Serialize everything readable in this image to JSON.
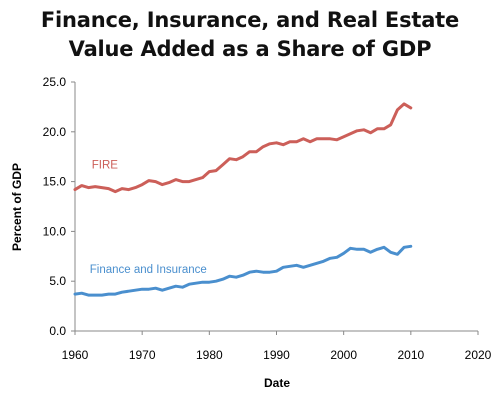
{
  "chart_data": {
    "type": "line",
    "title_lines": [
      "Finance, Insurance, and Real Estate",
      "Value Added as a Share of GDP"
    ],
    "xlabel": "Date",
    "ylabel": "Percent of GDP",
    "xlim": [
      1960,
      2020
    ],
    "ylim": [
      0,
      25
    ],
    "xticks": [
      1960,
      1970,
      1980,
      1990,
      2000,
      2010,
      2020
    ],
    "xtick_labels": [
      "1960",
      "1970",
      "1980",
      "1990",
      "2000",
      "2010",
      "2020"
    ],
    "yticks": [
      0,
      5,
      10,
      15,
      20,
      25
    ],
    "ytick_labels": [
      "0.0",
      "5.0",
      "10.0",
      "15.0",
      "20.0",
      "25.0"
    ],
    "grid": false,
    "series": [
      {
        "name": "FIRE",
        "color": "#cc5f59",
        "x": [
          1960,
          1961,
          1962,
          1963,
          1964,
          1965,
          1966,
          1967,
          1968,
          1969,
          1970,
          1971,
          1972,
          1973,
          1974,
          1975,
          1976,
          1977,
          1978,
          1979,
          1980,
          1981,
          1982,
          1983,
          1984,
          1985,
          1986,
          1987,
          1988,
          1989,
          1990,
          1991,
          1992,
          1993,
          1994,
          1995,
          1996,
          1997,
          1998,
          1999,
          2000,
          2001,
          2002,
          2003,
          2004,
          2005,
          2006,
          2007,
          2008,
          2009,
          2010
        ],
        "y": [
          14.2,
          14.6,
          14.4,
          14.5,
          14.4,
          14.3,
          14.0,
          14.3,
          14.2,
          14.4,
          14.7,
          15.1,
          15.0,
          14.7,
          14.9,
          15.2,
          15.0,
          15.0,
          15.2,
          15.4,
          16.0,
          16.1,
          16.7,
          17.3,
          17.2,
          17.5,
          18.0,
          18.0,
          18.5,
          18.8,
          18.9,
          18.7,
          19.0,
          19.0,
          19.3,
          19.0,
          19.3,
          19.3,
          19.3,
          19.2,
          19.5,
          19.8,
          20.1,
          20.2,
          19.9,
          20.3,
          20.3,
          20.7,
          22.2,
          22.8,
          22.4
        ]
      },
      {
        "name": "Finance and Insurance",
        "color": "#4a8fce",
        "x": [
          1960,
          1961,
          1962,
          1963,
          1964,
          1965,
          1966,
          1967,
          1968,
          1969,
          1970,
          1971,
          1972,
          1973,
          1974,
          1975,
          1976,
          1977,
          1978,
          1979,
          1980,
          1981,
          1982,
          1983,
          1984,
          1985,
          1986,
          1987,
          1988,
          1989,
          1990,
          1991,
          1992,
          1993,
          1994,
          1995,
          1996,
          1997,
          1998,
          1999,
          2000,
          2001,
          2002,
          2003,
          2004,
          2005,
          2006,
          2007,
          2008,
          2009,
          2010
        ],
        "y": [
          3.7,
          3.8,
          3.6,
          3.6,
          3.6,
          3.7,
          3.7,
          3.9,
          4.0,
          4.1,
          4.2,
          4.2,
          4.3,
          4.1,
          4.3,
          4.5,
          4.4,
          4.7,
          4.8,
          4.9,
          4.9,
          5.0,
          5.2,
          5.5,
          5.4,
          5.6,
          5.9,
          6.0,
          5.9,
          5.9,
          6.0,
          6.4,
          6.5,
          6.6,
          6.4,
          6.6,
          6.8,
          7.0,
          7.3,
          7.4,
          7.8,
          8.3,
          8.2,
          8.2,
          7.9,
          8.2,
          8.4,
          7.9,
          7.7,
          8.4,
          8.5
        ]
      }
    ]
  }
}
